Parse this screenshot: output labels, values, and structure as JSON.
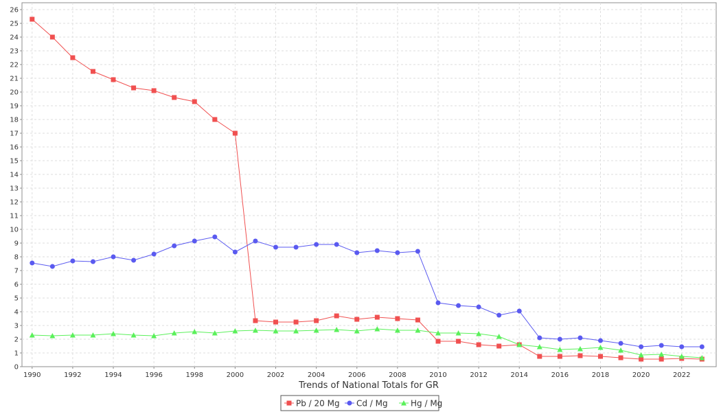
{
  "chart_data": {
    "type": "line",
    "title": "",
    "xlabel": "Trends of National Totals for GR",
    "ylabel": "",
    "x": [
      1990,
      1991,
      1992,
      1993,
      1994,
      1995,
      1996,
      1997,
      1998,
      1999,
      2000,
      2001,
      2002,
      2003,
      2004,
      2005,
      2006,
      2007,
      2008,
      2009,
      2010,
      2011,
      2012,
      2013,
      2014,
      2015,
      2016,
      2017,
      2018,
      2019,
      2020,
      2021,
      2022,
      2023
    ],
    "xticks": [
      1990,
      1992,
      1994,
      1996,
      1998,
      2000,
      2002,
      2004,
      2006,
      2008,
      2010,
      2012,
      2014,
      2016,
      2018,
      2020,
      2022
    ],
    "xlim": [
      1989.5,
      2023.7
    ],
    "ylim": [
      0,
      26.5
    ],
    "yticks": [
      0,
      1,
      2,
      3,
      4,
      5,
      6,
      7,
      8,
      9,
      10,
      11,
      12,
      13,
      14,
      15,
      16,
      17,
      18,
      19,
      20,
      21,
      22,
      23,
      24,
      25,
      26
    ],
    "grid": true,
    "legend_position": "bottom-center",
    "series": [
      {
        "name": "Pb / 20 Mg",
        "color": "#f05050",
        "marker": "square",
        "values": [
          25.3,
          24.0,
          22.5,
          21.5,
          20.9,
          20.3,
          20.1,
          19.6,
          19.3,
          18.0,
          17.0,
          3.35,
          3.25,
          3.25,
          3.35,
          3.7,
          3.45,
          3.6,
          3.5,
          3.4,
          1.85,
          1.85,
          1.6,
          1.5,
          1.6,
          0.75,
          0.75,
          0.8,
          0.75,
          0.65,
          0.55,
          0.55,
          0.6,
          0.55
        ]
      },
      {
        "name": "Cd / Mg",
        "color": "#5a5af0",
        "marker": "circle",
        "values": [
          7.55,
          7.3,
          7.7,
          7.65,
          8.0,
          7.75,
          8.2,
          8.8,
          9.15,
          9.45,
          8.35,
          9.15,
          8.7,
          8.7,
          8.9,
          8.9,
          8.3,
          8.45,
          8.3,
          8.4,
          4.65,
          4.45,
          4.35,
          3.75,
          4.05,
          2.1,
          2.0,
          2.1,
          1.9,
          1.7,
          1.45,
          1.55,
          1.45,
          1.45
        ]
      },
      {
        "name": "Hg / Mg",
        "color": "#5af05a",
        "marker": "triangle",
        "values": [
          2.3,
          2.25,
          2.3,
          2.3,
          2.4,
          2.3,
          2.25,
          2.45,
          2.55,
          2.45,
          2.6,
          2.65,
          2.6,
          2.6,
          2.65,
          2.7,
          2.6,
          2.75,
          2.65,
          2.65,
          2.45,
          2.45,
          2.4,
          2.2,
          1.6,
          1.45,
          1.25,
          1.3,
          1.4,
          1.2,
          0.85,
          0.9,
          0.75,
          0.65
        ]
      }
    ]
  }
}
